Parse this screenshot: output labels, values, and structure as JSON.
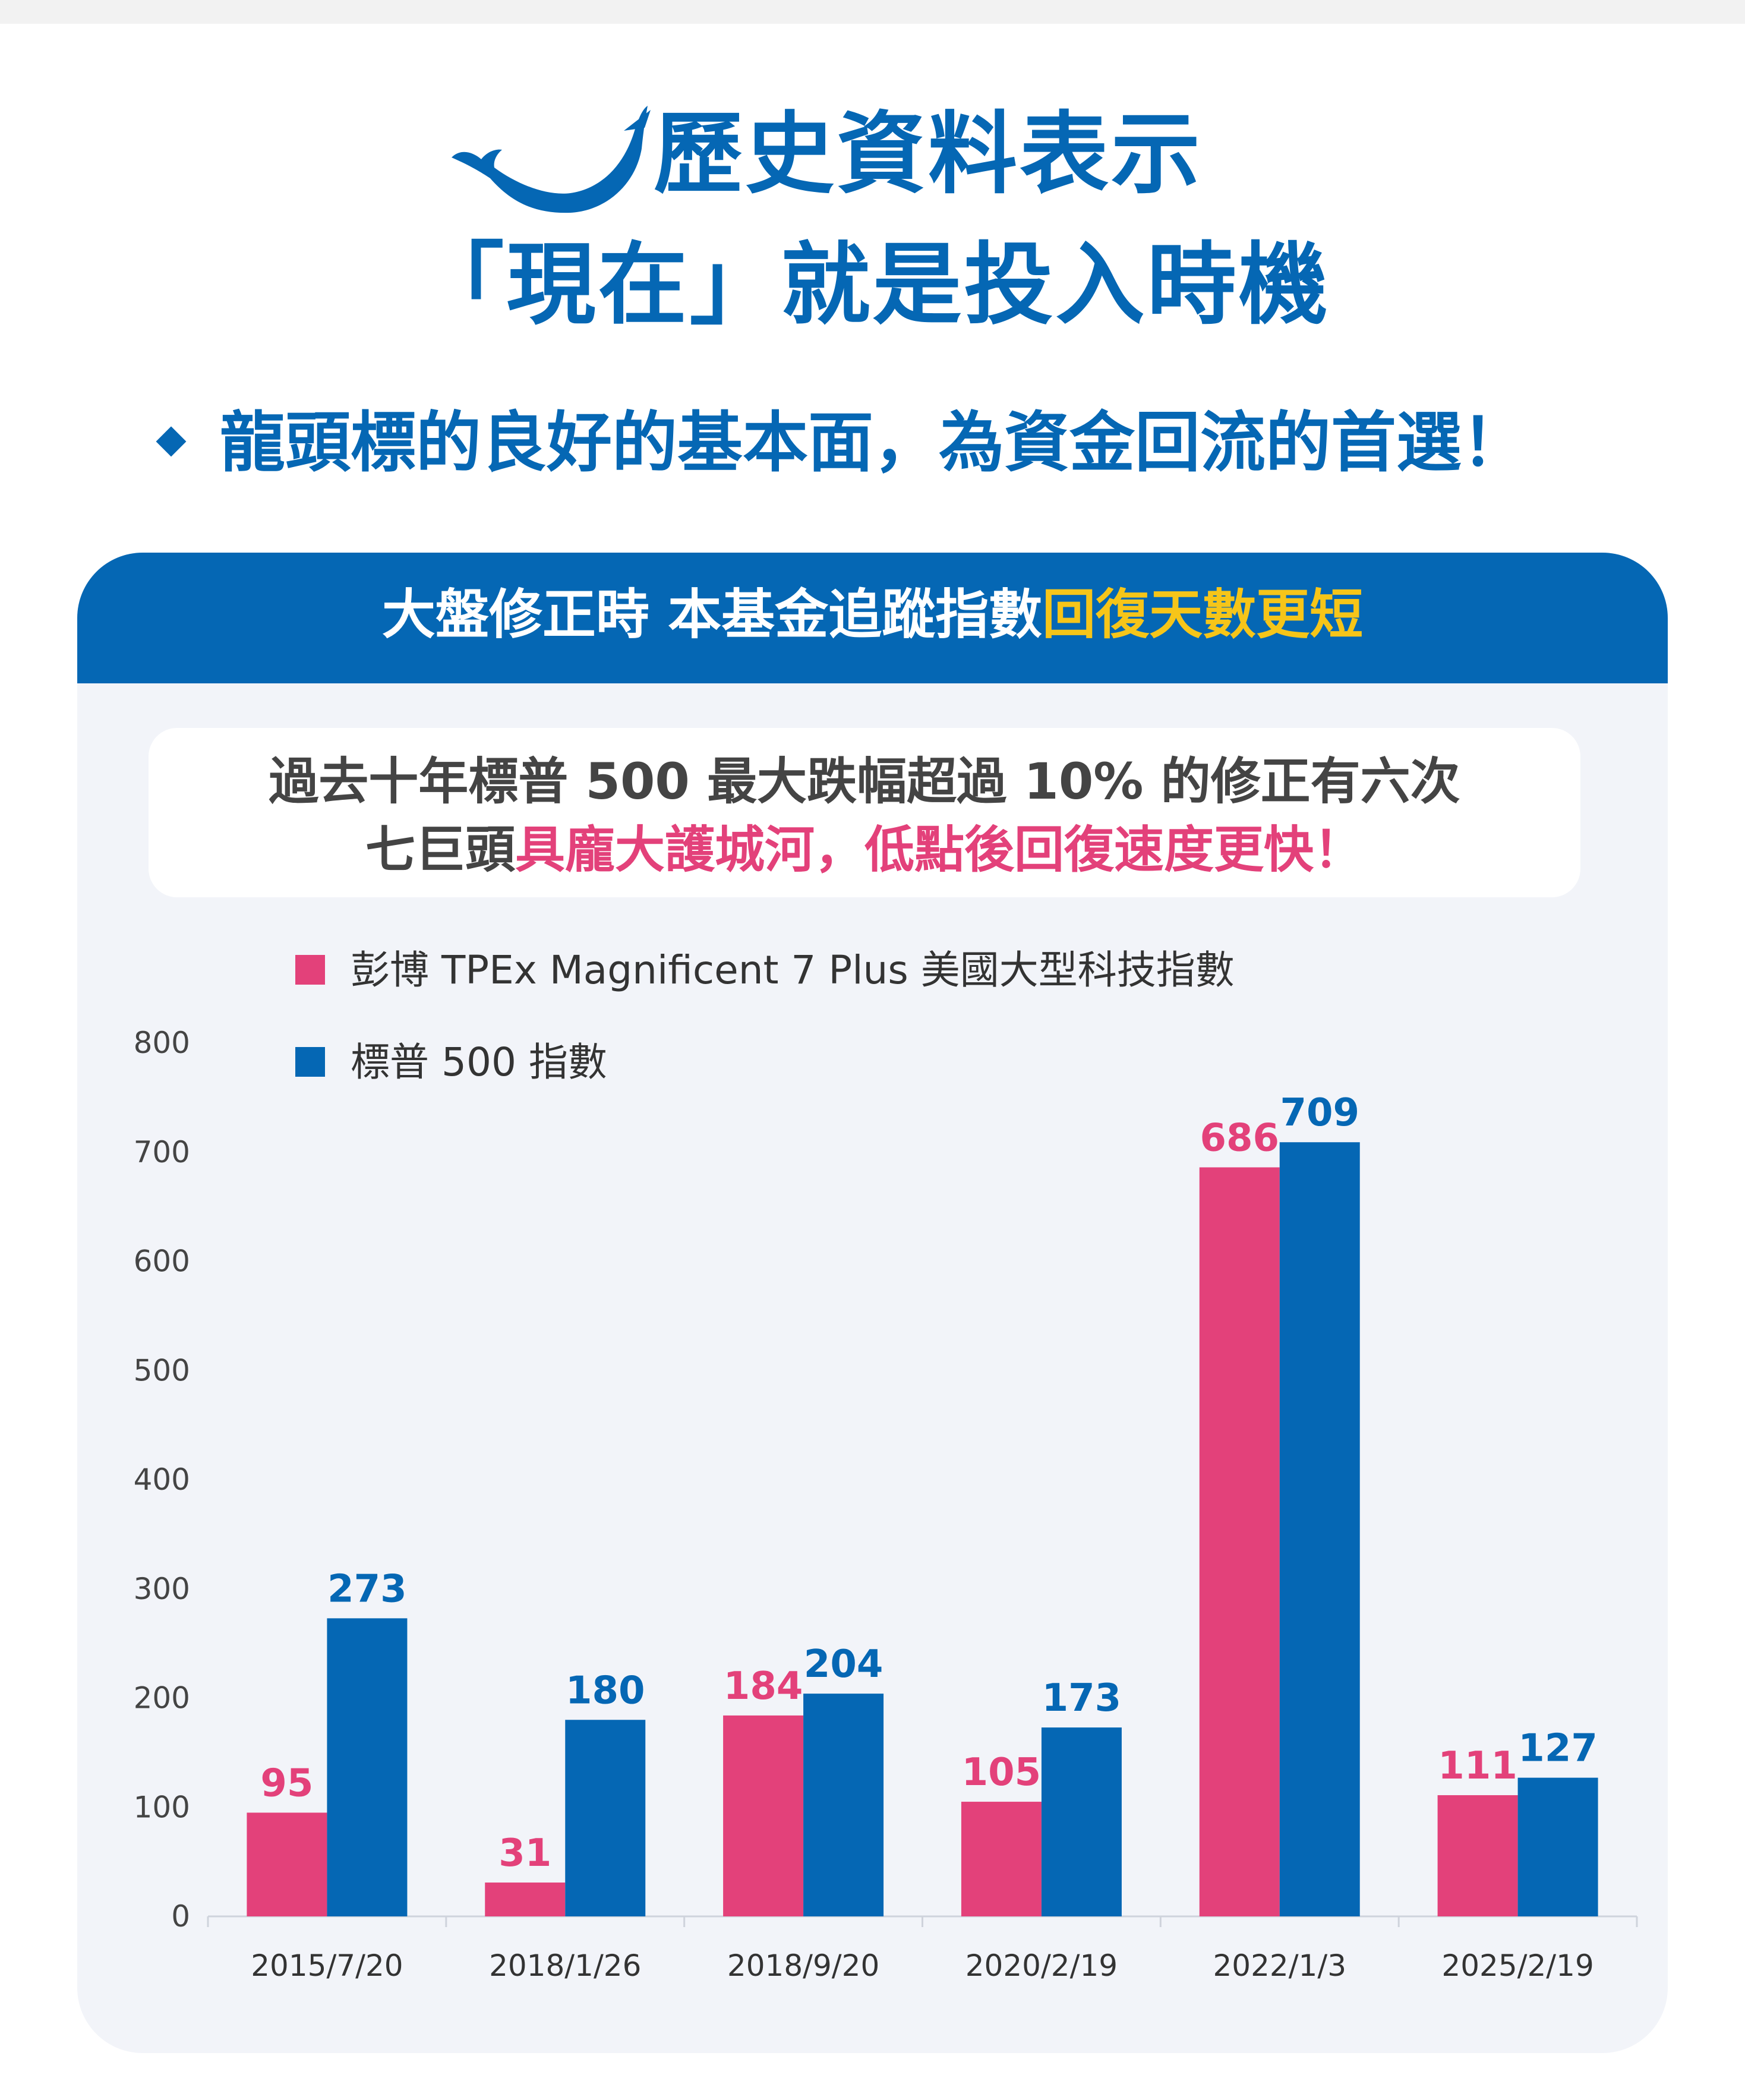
{
  "header": {
    "title_line1": "歷史資料表示",
    "title_line2": "「現在」就是投入時機",
    "subtitle": "龍頭標的良好的基本面，為資金回流的首選！",
    "logo_icon": "whale-icon"
  },
  "panel": {
    "title_main": "大盤修正時 本基金追蹤指數",
    "title_highlight": "回復天數更短",
    "note_line1": "過去十年標普 500 最大跌幅超過 10% 的修正有六次",
    "note_line2_plain": "七巨頭",
    "note_line2_highlight": "具龐大護城河，低點後回復速度更快！"
  },
  "colors": {
    "primary_blue": "#0567b4",
    "pink": "#e3417a",
    "yellow": "#f6c519",
    "panel_bg": "#f2f4f9"
  },
  "chart_data": {
    "type": "bar",
    "categories": [
      "2015/7/20",
      "2018/1/26",
      "2018/9/20",
      "2020/2/19",
      "2022/1/3",
      "2025/2/19"
    ],
    "series": [
      {
        "name": "彭博 TPEx Magnificent 7 Plus 美國大型科技指數",
        "color": "#e3417a",
        "values": [
          95,
          31,
          184,
          105,
          686,
          111
        ]
      },
      {
        "name": "標普 500 指數",
        "color": "#0567b4",
        "values": [
          273,
          180,
          204,
          173,
          709,
          127
        ]
      }
    ],
    "yticks": [
      0,
      100,
      200,
      300,
      400,
      500,
      600,
      700,
      800
    ],
    "ylim": [
      0,
      800
    ],
    "grid": false,
    "legend_position": "top-left",
    "data_labels": true
  }
}
